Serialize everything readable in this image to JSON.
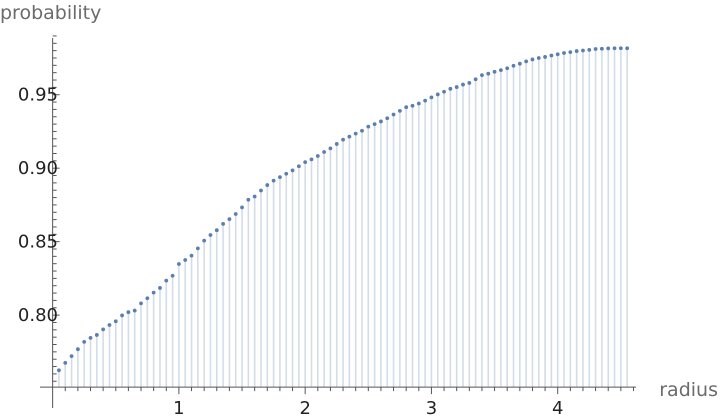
{
  "chart_data": {
    "type": "scatter",
    "title": "",
    "xlabel": "radius",
    "ylabel": "probability",
    "xlim": [
      -0.1,
      4.62
    ],
    "ylim": [
      0.747,
      0.992
    ],
    "baseline": 0.751,
    "x_ticks": [
      1,
      2,
      3,
      4
    ],
    "x_tick_labels": [
      "1",
      "2",
      "3",
      "4"
    ],
    "y_ticks": [
      0.8,
      0.85,
      0.9,
      0.95
    ],
    "y_tick_labels": [
      "0.80",
      "0.85",
      "0.90",
      "0.95"
    ],
    "grid": false,
    "legend": "none",
    "series": [
      {
        "marker_color": "#5b7fae",
        "stem_color": "#d3dde8",
        "x": [
          0.05,
          0.1,
          0.15,
          0.2,
          0.25,
          0.3,
          0.35,
          0.4,
          0.45,
          0.5,
          0.55,
          0.6,
          0.65,
          0.7,
          0.75,
          0.8,
          0.85,
          0.9,
          0.95,
          1.0,
          1.05,
          1.1,
          1.15,
          1.2,
          1.25,
          1.3,
          1.35,
          1.4,
          1.45,
          1.5,
          1.55,
          1.6,
          1.65,
          1.7,
          1.75,
          1.8,
          1.85,
          1.9,
          1.95,
          2.0,
          2.05,
          2.1,
          2.15,
          2.2,
          2.25,
          2.3,
          2.35,
          2.4,
          2.45,
          2.5,
          2.55,
          2.6,
          2.65,
          2.7,
          2.75,
          2.8,
          2.85,
          2.9,
          2.95,
          3.0,
          3.05,
          3.1,
          3.15,
          3.2,
          3.25,
          3.3,
          3.35,
          3.4,
          3.45,
          3.5,
          3.55,
          3.6,
          3.65,
          3.7,
          3.75,
          3.8,
          3.85,
          3.9,
          3.95,
          4.0,
          4.05,
          4.1,
          4.15,
          4.2,
          4.25,
          4.3,
          4.35,
          4.4,
          4.45,
          4.5,
          4.55
        ],
        "y": [
          0.7625,
          0.7675,
          0.7721,
          0.7768,
          0.7818,
          0.7845,
          0.7865,
          0.7903,
          0.7933,
          0.7958,
          0.7998,
          0.802,
          0.8031,
          0.808,
          0.8115,
          0.8153,
          0.8185,
          0.8235,
          0.8268,
          0.8348,
          0.8375,
          0.8405,
          0.8454,
          0.8507,
          0.8545,
          0.8578,
          0.8621,
          0.8653,
          0.8688,
          0.8733,
          0.8785,
          0.8807,
          0.8848,
          0.8885,
          0.8915,
          0.8939,
          0.8962,
          0.8985,
          0.9013,
          0.9041,
          0.906,
          0.9083,
          0.911,
          0.9135,
          0.9165,
          0.9194,
          0.9215,
          0.9235,
          0.9255,
          0.9283,
          0.93,
          0.9318,
          0.934,
          0.9365,
          0.939,
          0.9415,
          0.9425,
          0.944,
          0.946,
          0.9482,
          0.9502,
          0.952,
          0.954,
          0.9552,
          0.9569,
          0.958,
          0.9605,
          0.9633,
          0.9643,
          0.9656,
          0.9667,
          0.968,
          0.9697,
          0.9711,
          0.9727,
          0.974,
          0.975,
          0.9757,
          0.9767,
          0.9775,
          0.9784,
          0.979,
          0.9797,
          0.9801,
          0.9805,
          0.9811,
          0.9813,
          0.9815,
          0.9816,
          0.9816,
          0.9816
        ]
      }
    ]
  }
}
